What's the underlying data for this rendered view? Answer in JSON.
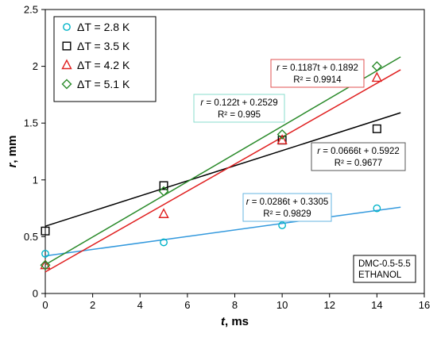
{
  "chart_data": {
    "type": "scatter",
    "xlabel": {
      "var": "t",
      "unit": ", ms"
    },
    "ylabel": {
      "var": "r",
      "unit": ", mm"
    },
    "xlim": [
      0,
      16
    ],
    "ylim": [
      0,
      2.5
    ],
    "xticks": [
      0,
      2,
      4,
      6,
      8,
      10,
      12,
      14,
      16
    ],
    "yticks": [
      0,
      0.5,
      1,
      1.5,
      2,
      2.5
    ],
    "xtick_labels": [
      "0",
      "2",
      "4",
      "6",
      "8",
      "10",
      "12",
      "14",
      "16"
    ],
    "ytick_labels": [
      "0",
      "0.5",
      "1",
      "1.5",
      "2",
      "2.5"
    ],
    "grid": false,
    "legend_position": "top-left",
    "series": [
      {
        "name": "ΔT = 2.8 K",
        "marker": "circle",
        "color": "#00b4c8",
        "line_color": "#3399dd",
        "x": [
          0,
          5,
          10,
          14
        ],
        "y": [
          0.35,
          0.45,
          0.6,
          0.75
        ],
        "fit": {
          "slope": 0.0286,
          "intercept": 0.3305
        },
        "fit_range": [
          0,
          15
        ],
        "annotation": {
          "eq_pre": "r",
          "eq_post": " = 0.0286t + 0.3305",
          "r2": "R² = 0.9829",
          "border_color": "#66b4e0"
        }
      },
      {
        "name": "ΔT = 3.5 K",
        "marker": "square",
        "color": "#000000",
        "line_color": "#000000",
        "x": [
          0,
          5,
          10,
          14
        ],
        "y": [
          0.55,
          0.95,
          1.35,
          1.45
        ],
        "fit": {
          "slope": 0.0666,
          "intercept": 0.5922
        },
        "fit_range": [
          0,
          15
        ],
        "annotation": {
          "eq_pre": "r",
          "eq_post": " = 0.0666t + 0.5922",
          "r2": "R² = 0.9677",
          "border_color": "#555555"
        }
      },
      {
        "name": "ΔT = 4.2 K",
        "marker": "triangle",
        "color": "#e02020",
        "line_color": "#e02020",
        "x": [
          0,
          5,
          10,
          14
        ],
        "y": [
          0.25,
          0.7,
          1.35,
          1.9
        ],
        "fit": {
          "slope": 0.1187,
          "intercept": 0.1892
        },
        "fit_range": [
          0,
          15
        ],
        "annotation": {
          "eq_pre": "r",
          "eq_post": " = 0.1187t + 0.1892",
          "r2": "R² = 0.9914",
          "border_color": "#e05050"
        }
      },
      {
        "name": "ΔT = 5.1 K",
        "marker": "diamond",
        "color": "#2a8a2a",
        "line_color": "#2a8a2a",
        "x": [
          0,
          5,
          10,
          14
        ],
        "y": [
          0.25,
          0.9,
          1.4,
          2.0
        ],
        "fit": {
          "slope": 0.122,
          "intercept": 0.2529
        },
        "fit_range": [
          0,
          15
        ],
        "annotation": {
          "eq_pre": "r",
          "eq_post": " = 0.122t + 0.2529",
          "r2": "R² = 0.995",
          "border_color": "#88ddcc"
        }
      }
    ],
    "note": [
      "DMC-0.5-5.5",
      "ETHANOL"
    ]
  }
}
